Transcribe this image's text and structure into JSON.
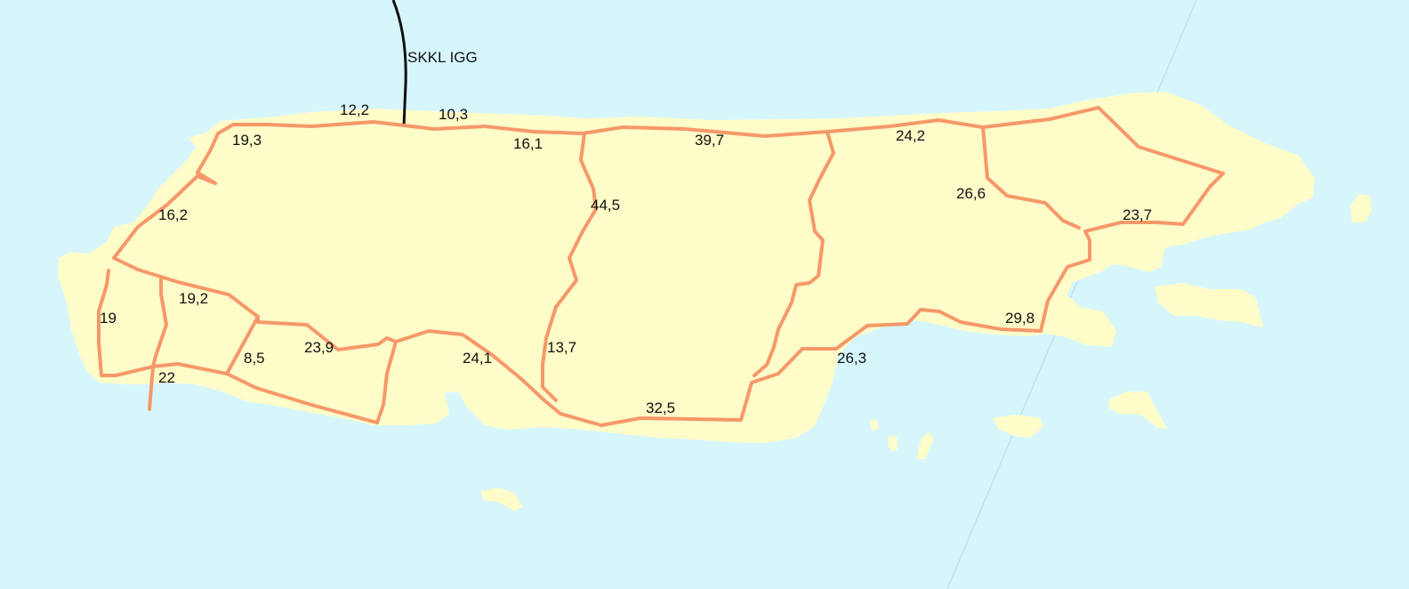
{
  "colors": {
    "water": "#d6f6fc",
    "land": "#fefcc8",
    "road": "#f6986a",
    "cable": "#111111"
  },
  "cable_label": "SKKL IGG",
  "segment_labels": {
    "s1": "12,2",
    "s2": "10,3",
    "s3": "19,3",
    "s4": "16,1",
    "s5": "39,7",
    "s6": "24,2",
    "s7": "16,2",
    "s8": "44,5",
    "s9": "26,6",
    "s10": "23,7",
    "s11": "19,2",
    "s12": "19",
    "s13": "8,5",
    "s14": "23,9",
    "s15": "13,7",
    "s16": "24,1",
    "s17": "26,3",
    "s18": "29,8",
    "s19": "22",
    "s20": "32,5"
  }
}
